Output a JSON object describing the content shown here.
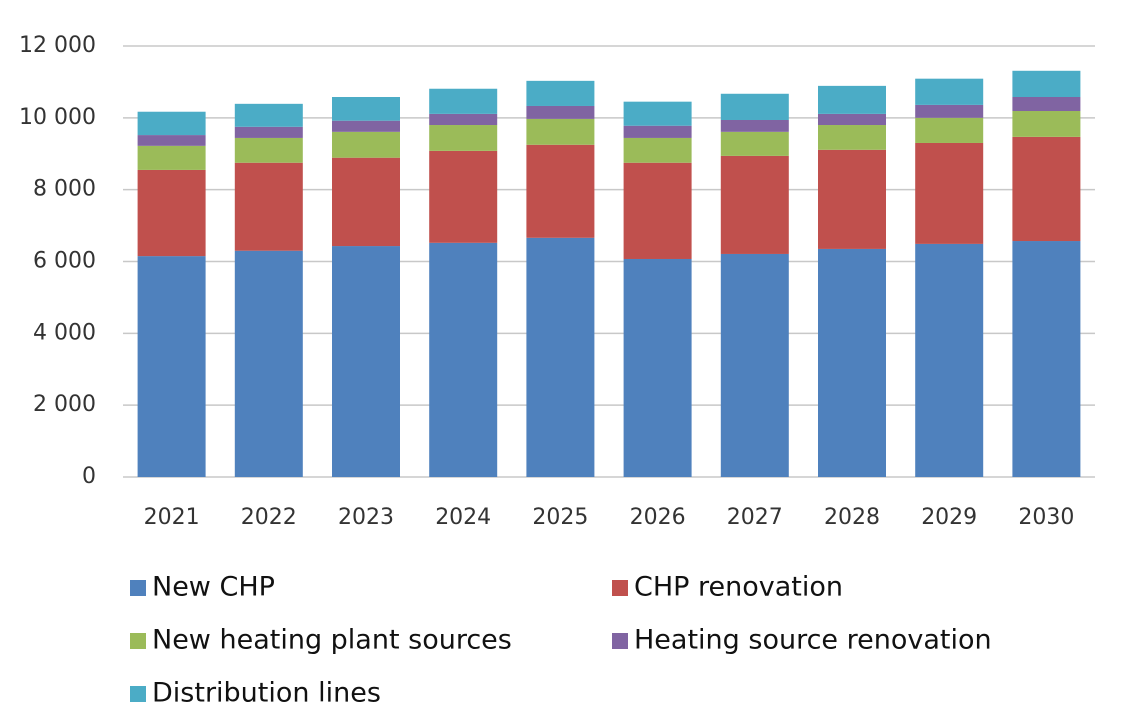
{
  "chart_data": {
    "type": "stacked_bar",
    "categories": [
      "2021",
      "2022",
      "2023",
      "2024",
      "2025",
      "2026",
      "2027",
      "2028",
      "2029",
      "2030"
    ],
    "series": [
      {
        "name": "New CHP",
        "color": "#4f81bd",
        "values": [
          6150,
          6300,
          6430,
          6520,
          6660,
          6070,
          6210,
          6350,
          6490,
          6570
        ]
      },
      {
        "name": "CHP renovation",
        "color": "#c0504d",
        "values": [
          2400,
          2450,
          2460,
          2560,
          2590,
          2680,
          2730,
          2760,
          2810,
          2900
        ]
      },
      {
        "name": "New heating plant sources",
        "color": "#9bbb59",
        "values": [
          670,
          690,
          720,
          720,
          720,
          690,
          670,
          690,
          700,
          720
        ]
      },
      {
        "name": "Heating source renovation",
        "color": "#8064a2",
        "values": [
          300,
          310,
          310,
          310,
          360,
          340,
          330,
          310,
          360,
          390
        ]
      },
      {
        "name": "Distribution lines",
        "color": "#4bacc6",
        "values": [
          650,
          640,
          660,
          700,
          700,
          670,
          730,
          780,
          730,
          730
        ]
      }
    ],
    "ylim": [
      0,
      12000
    ],
    "yticks": [
      0,
      {
        "value": 2000,
        "label": "2 000"
      },
      {
        "value": 4000,
        "label": "4 000"
      },
      {
        "value": 6000,
        "label": "6 000"
      },
      {
        "value": 8000,
        "label": "8 000"
      },
      {
        "value": 10000,
        "label": "10 000"
      },
      {
        "value": 12000,
        "label": "12 000"
      }
    ],
    "grid": true
  }
}
